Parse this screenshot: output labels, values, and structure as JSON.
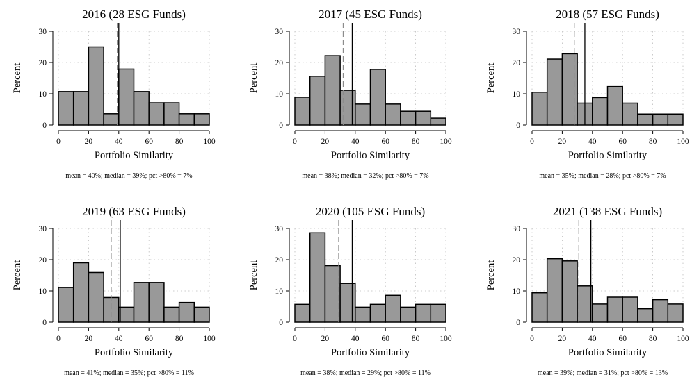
{
  "chart_data": [
    {
      "type": "bar",
      "title": "2016 (28 ESG Funds)",
      "xlabel": "Portfolio Similarity",
      "ylabel": "Percent",
      "bin_width": 10,
      "bins": [
        0,
        10,
        20,
        30,
        40,
        50,
        60,
        70,
        80,
        90
      ],
      "values": [
        10.7,
        10.7,
        25.0,
        3.6,
        17.9,
        10.7,
        7.1,
        7.1,
        3.6,
        3.6
      ],
      "mean": 40,
      "median": 39,
      "xlim": [
        0,
        100
      ],
      "ylim": [
        0,
        30
      ],
      "xticks": [
        "0",
        "20",
        "40",
        "60",
        "80",
        "100"
      ],
      "yticks": [
        "0",
        "10",
        "20",
        "30"
      ],
      "grid": true,
      "note": "mean = 40%; median = 39%; pct >80% = 7%"
    },
    {
      "type": "bar",
      "title": "2017 (45 ESG Funds)",
      "xlabel": "Portfolio Similarity",
      "ylabel": "Percent",
      "bin_width": 10,
      "bins": [
        0,
        10,
        20,
        30,
        40,
        50,
        60,
        70,
        80,
        90
      ],
      "values": [
        8.9,
        15.6,
        22.2,
        11.1,
        6.7,
        17.8,
        6.7,
        4.4,
        4.4,
        2.2
      ],
      "mean": 38,
      "median": 32,
      "xlim": [
        0,
        100
      ],
      "ylim": [
        0,
        30
      ],
      "xticks": [
        "0",
        "20",
        "40",
        "60",
        "80",
        "100"
      ],
      "yticks": [
        "0",
        "10",
        "20",
        "30"
      ],
      "grid": true,
      "note": "mean = 38%; median = 32%; pct >80% = 7%"
    },
    {
      "type": "bar",
      "title": "2018 (57 ESG Funds)",
      "xlabel": "Portfolio Similarity",
      "ylabel": "Percent",
      "bin_width": 10,
      "bins": [
        0,
        10,
        20,
        30,
        40,
        50,
        60,
        70,
        80,
        90
      ],
      "values": [
        10.5,
        21.1,
        22.8,
        7.0,
        8.8,
        12.3,
        7.0,
        3.5,
        3.5,
        3.5
      ],
      "mean": 35,
      "median": 28,
      "xlim": [
        0,
        100
      ],
      "ylim": [
        0,
        30
      ],
      "xticks": [
        "0",
        "20",
        "40",
        "60",
        "80",
        "100"
      ],
      "yticks": [
        "0",
        "10",
        "20",
        "30"
      ],
      "grid": true,
      "note": "mean = 35%; median = 28%; pct >80% = 7%"
    },
    {
      "type": "bar",
      "title": "2019 (63 ESG Funds)",
      "xlabel": "Portfolio Similarity",
      "ylabel": "Percent",
      "bin_width": 10,
      "bins": [
        0,
        10,
        20,
        30,
        40,
        50,
        60,
        70,
        80,
        90
      ],
      "values": [
        11.1,
        19.0,
        15.9,
        7.9,
        4.8,
        12.7,
        12.7,
        4.8,
        6.3,
        4.8
      ],
      "mean": 41,
      "median": 35,
      "xlim": [
        0,
        100
      ],
      "ylim": [
        0,
        30
      ],
      "xticks": [
        "0",
        "20",
        "40",
        "60",
        "80",
        "100"
      ],
      "yticks": [
        "0",
        "10",
        "20",
        "30"
      ],
      "grid": true,
      "note": "mean = 41%; median = 35%; pct >80% = 11%"
    },
    {
      "type": "bar",
      "title": "2020 (105 ESG Funds)",
      "xlabel": "Portfolio Similarity",
      "ylabel": "Percent",
      "bin_width": 10,
      "bins": [
        0,
        10,
        20,
        30,
        40,
        50,
        60,
        70,
        80,
        90
      ],
      "values": [
        5.7,
        28.6,
        18.1,
        12.4,
        4.8,
        5.7,
        8.6,
        4.8,
        5.7,
        5.7
      ],
      "mean": 38,
      "median": 29,
      "xlim": [
        0,
        100
      ],
      "ylim": [
        0,
        30
      ],
      "xticks": [
        "0",
        "20",
        "40",
        "60",
        "80",
        "100"
      ],
      "yticks": [
        "0",
        "10",
        "20",
        "30"
      ],
      "grid": true,
      "note": "mean = 38%; median = 29%; pct >80% = 11%"
    },
    {
      "type": "bar",
      "title": "2021 (138 ESG Funds)",
      "xlabel": "Portfolio Similarity",
      "ylabel": "Percent",
      "bin_width": 10,
      "bins": [
        0,
        10,
        20,
        30,
        40,
        50,
        60,
        70,
        80,
        90
      ],
      "values": [
        9.4,
        20.3,
        19.6,
        11.6,
        5.8,
        8.0,
        8.0,
        4.3,
        7.2,
        5.8
      ],
      "mean": 39,
      "median": 31,
      "xlim": [
        0,
        100
      ],
      "ylim": [
        0,
        30
      ],
      "xticks": [
        "0",
        "20",
        "40",
        "60",
        "80",
        "100"
      ],
      "yticks": [
        "0",
        "10",
        "20",
        "30"
      ],
      "grid": true,
      "note": "mean = 39%; median = 31%; pct >80% = 13%"
    }
  ]
}
